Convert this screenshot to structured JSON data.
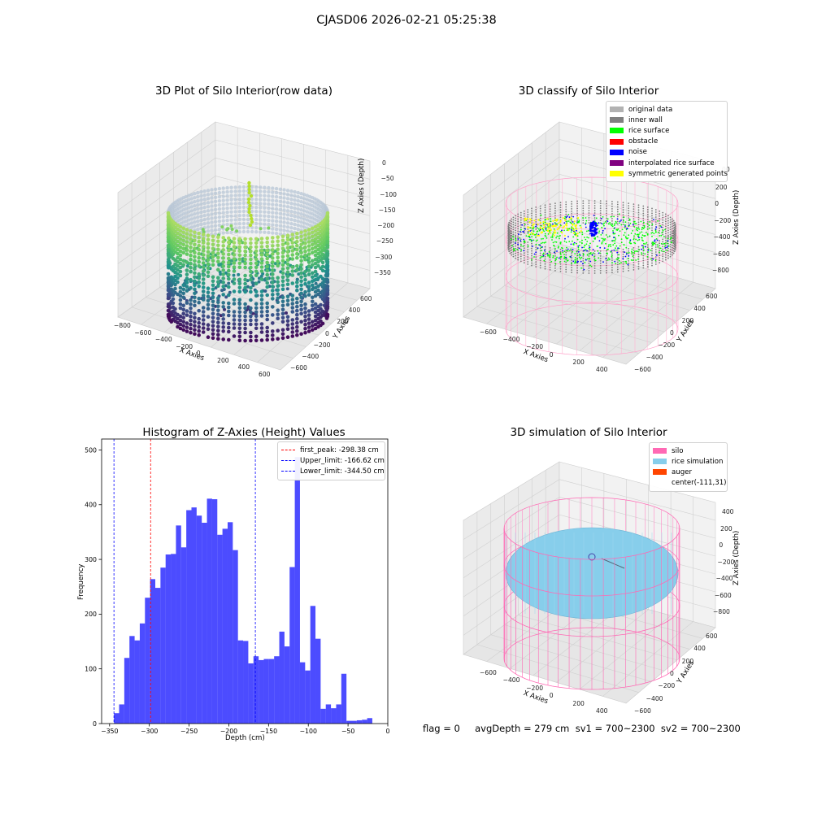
{
  "suptitle": "CJASD06 2026-02-21 05:25:38",
  "panels": {
    "raw": {
      "title": "3D Plot of Silo Interior(row data)",
      "xlabel": "X Axies",
      "ylabel": "Y Axies",
      "zlabel": "Z Axies (Depth)",
      "xticks": [
        "−800",
        "−600",
        "−400",
        "−200",
        "0",
        "200",
        "400",
        "600"
      ],
      "yticks": [
        "−600",
        "−400",
        "−200",
        "0",
        "200",
        "400",
        "600"
      ],
      "zticks": [
        "0",
        "−50",
        "−100",
        "−150",
        "−200",
        "−250",
        "−300",
        "−350"
      ],
      "colormap": "viridis"
    },
    "classify": {
      "title": "3D classify of Silo Interior",
      "xlabel": "X Axies",
      "ylabel": "Y Axies",
      "zlabel": "Z Axies (Depth)",
      "xticks": [
        "−600",
        "−400",
        "−200",
        "0",
        "200",
        "400"
      ],
      "yticks": [
        "−600",
        "−400",
        "−200",
        "0",
        "200",
        "400",
        "600"
      ],
      "zticks": [
        "400",
        "200",
        "0",
        "−200",
        "−400",
        "−600",
        "−800"
      ],
      "partial_ztick": "00",
      "legend": [
        {
          "label": "original data",
          "color": "#b2b2b2"
        },
        {
          "label": "inner wall",
          "color": "#808080"
        },
        {
          "label": "rice surface",
          "color": "#00ff00"
        },
        {
          "label": "obstacle",
          "color": "#ff0000"
        },
        {
          "label": "noise",
          "color": "#0000ff"
        },
        {
          "label": "interpolated rice surface",
          "color": "#800080"
        },
        {
          "label": "symmetric generated points",
          "color": "#ffff00"
        }
      ]
    },
    "simulation": {
      "title": "3D simulation of Silo Interior",
      "xlabel": "X Axies",
      "ylabel": "Y Axies",
      "zlabel": "Z Axies (Depth)",
      "xticks": [
        "−600",
        "−400",
        "−200",
        "0",
        "200",
        "400"
      ],
      "yticks": [
        "−600",
        "−400",
        "−200",
        "0",
        "200",
        "400",
        "600"
      ],
      "zticks": [
        "400",
        "200",
        "0",
        "−200",
        "−400",
        "−600",
        "−800"
      ],
      "legend": [
        {
          "label": "silo",
          "color": "#ff69b4"
        },
        {
          "label": "rice simulation",
          "color": "#87ceeb"
        },
        {
          "label": "auger",
          "color": "#ff4500"
        },
        {
          "label": "center(-111,31)",
          "color": ""
        }
      ],
      "footer": "flag = 0     avgDepth = 279 cm  sv1 = 700~2300  sv2 = 700~2300"
    }
  },
  "chart_data": [
    {
      "type": "bar",
      "title": "Histogram of Z-Axies (Height) Values",
      "xlabel": "Depth (cm)",
      "ylabel": "Frequency",
      "xlim": [
        -360,
        0
      ],
      "ylim": [
        0,
        520
      ],
      "xticks": [
        -350,
        -300,
        -250,
        -200,
        -150,
        -100,
        -50,
        0
      ],
      "yticks": [
        0,
        100,
        200,
        300,
        400,
        500
      ],
      "bar_color": "#0000ff",
      "bin_width": 6.5,
      "bins": [
        {
          "x": -344.5,
          "value": 19
        },
        {
          "x": -338,
          "value": 35
        },
        {
          "x": -331.5,
          "value": 120
        },
        {
          "x": -325,
          "value": 160
        },
        {
          "x": -318.5,
          "value": 152
        },
        {
          "x": -312,
          "value": 183
        },
        {
          "x": -305.5,
          "value": 230
        },
        {
          "x": -299,
          "value": 264
        },
        {
          "x": -292.5,
          "value": 248
        },
        {
          "x": -286,
          "value": 285
        },
        {
          "x": -279.5,
          "value": 309
        },
        {
          "x": -273,
          "value": 310
        },
        {
          "x": -266.5,
          "value": 362
        },
        {
          "x": -260,
          "value": 322
        },
        {
          "x": -253.5,
          "value": 390
        },
        {
          "x": -247,
          "value": 395
        },
        {
          "x": -240.5,
          "value": 380
        },
        {
          "x": -234,
          "value": 367
        },
        {
          "x": -227.5,
          "value": 411
        },
        {
          "x": -221,
          "value": 410
        },
        {
          "x": -214.5,
          "value": 345
        },
        {
          "x": -208,
          "value": 356
        },
        {
          "x": -201.5,
          "value": 368
        },
        {
          "x": -195,
          "value": 317
        },
        {
          "x": -188.5,
          "value": 152
        },
        {
          "x": -182,
          "value": 151
        },
        {
          "x": -175.5,
          "value": 110
        },
        {
          "x": -169,
          "value": 123
        },
        {
          "x": -162.5,
          "value": 116
        },
        {
          "x": -156,
          "value": 118
        },
        {
          "x": -149.5,
          "value": 118
        },
        {
          "x": -143,
          "value": 123
        },
        {
          "x": -136.5,
          "value": 168
        },
        {
          "x": -130,
          "value": 141
        },
        {
          "x": -123.5,
          "value": 286
        },
        {
          "x": -117,
          "value": 487
        },
        {
          "x": -110.5,
          "value": 112
        },
        {
          "x": -104,
          "value": 97
        },
        {
          "x": -97.5,
          "value": 215
        },
        {
          "x": -91,
          "value": 155
        },
        {
          "x": -84.5,
          "value": 27
        },
        {
          "x": -78,
          "value": 35
        },
        {
          "x": -71.5,
          "value": 28
        },
        {
          "x": -65,
          "value": 35
        },
        {
          "x": -58.5,
          "value": 91
        },
        {
          "x": -52,
          "value": 5
        },
        {
          "x": -45.5,
          "value": 5
        },
        {
          "x": -39,
          "value": 6
        },
        {
          "x": -32.5,
          "value": 7
        },
        {
          "x": -26,
          "value": 10
        }
      ],
      "vlines": [
        {
          "label": "first_peak: -298.38 cm",
          "x": -298.38,
          "color": "#ff0000"
        },
        {
          "label": "Upper_limit: -166.62 cm",
          "x": -166.62,
          "color": "#0000ff"
        },
        {
          "label": "Lower_limit: -344.50 cm",
          "x": -344.5,
          "color": "#0000ff"
        }
      ]
    }
  ]
}
